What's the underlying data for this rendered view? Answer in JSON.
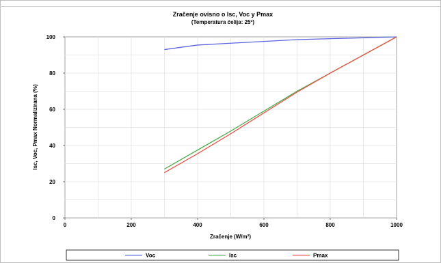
{
  "chart_data": {
    "type": "line",
    "title": "Zračenje ovisno o Isc, Voc y Pmax",
    "subtitle": "(Temperatura ćelija: 25º)",
    "xlabel": "Zračenje (W/m²)",
    "ylabel": "Isc, Voc, Pmax Normalizirana (%)",
    "xlim": [
      0,
      1000
    ],
    "ylim": [
      0,
      100
    ],
    "xticks": [
      "0",
      "200",
      "400",
      "600",
      "800",
      "1000"
    ],
    "yticks": [
      "0",
      "20",
      "40",
      "60",
      "80",
      "100"
    ],
    "grid": true,
    "legend_position": "bottom",
    "series": [
      {
        "name": "Voc",
        "color": "#5b63e0",
        "x": [
          300,
          400,
          500,
          600,
          700,
          800,
          900,
          1000
        ],
        "y": [
          93,
          95.5,
          96.5,
          97.5,
          98.5,
          99,
          99.5,
          100
        ]
      },
      {
        "name": "Isc",
        "color": "#4fae4f",
        "x": [
          300,
          400,
          500,
          600,
          700,
          800,
          900,
          1000
        ],
        "y": [
          27,
          37.5,
          48,
          59,
          70,
          80,
          90,
          100
        ]
      },
      {
        "name": "Pmax",
        "color": "#e8564a",
        "x": [
          300,
          400,
          500,
          600,
          700,
          800,
          900,
          1000
        ],
        "y": [
          25,
          35.5,
          46.5,
          58,
          69.5,
          80,
          90,
          100
        ]
      }
    ]
  }
}
